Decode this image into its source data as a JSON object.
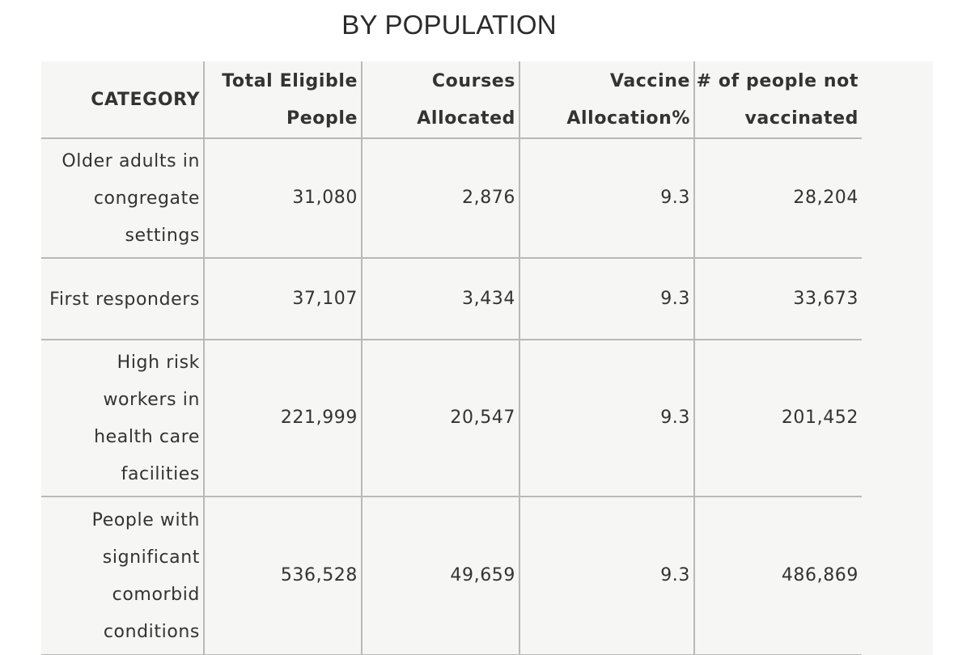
{
  "page": {
    "title": "BY POPULATION"
  },
  "table": {
    "headers": [
      "CATEGORY",
      "Total Eligible People",
      "Courses Allocated",
      "Vaccine Allocation%",
      "# of people not vaccinated"
    ],
    "rows": [
      {
        "category": "Older adults in congregate settings",
        "total_eligible": "31,080",
        "courses_allocated": "2,876",
        "allocation_pct": "9.3",
        "not_vaccinated": "28,204"
      },
      {
        "category": "First responders",
        "total_eligible": "37,107",
        "courses_allocated": "3,434",
        "allocation_pct": "9.3",
        "not_vaccinated": "33,673"
      },
      {
        "category": "High risk workers in health care facilities",
        "total_eligible": "221,999",
        "courses_allocated": "20,547",
        "allocation_pct": "9.3",
        "not_vaccinated": "201,452"
      },
      {
        "category": "People with significant comorbid conditions",
        "total_eligible": "536,528",
        "courses_allocated": "49,659",
        "allocation_pct": "9.3",
        "not_vaccinated": "486,869"
      }
    ]
  }
}
